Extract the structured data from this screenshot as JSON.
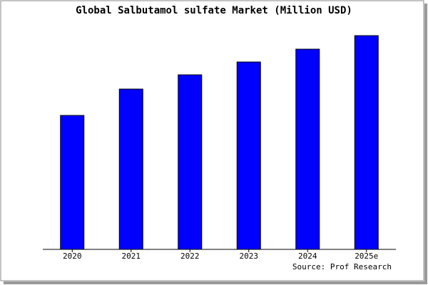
{
  "chart_data": {
    "type": "bar",
    "title": "Global Salbutamol sulfate Market (Million USD)",
    "categories": [
      "2020",
      "2021",
      "2022",
      "2023",
      "2024",
      "2025e"
    ],
    "values": [
      188,
      225,
      245,
      263,
      281,
      300
    ],
    "color": "#0000ff",
    "ylim": [
      0,
      300
    ],
    "source": "Source: Prof Research"
  }
}
